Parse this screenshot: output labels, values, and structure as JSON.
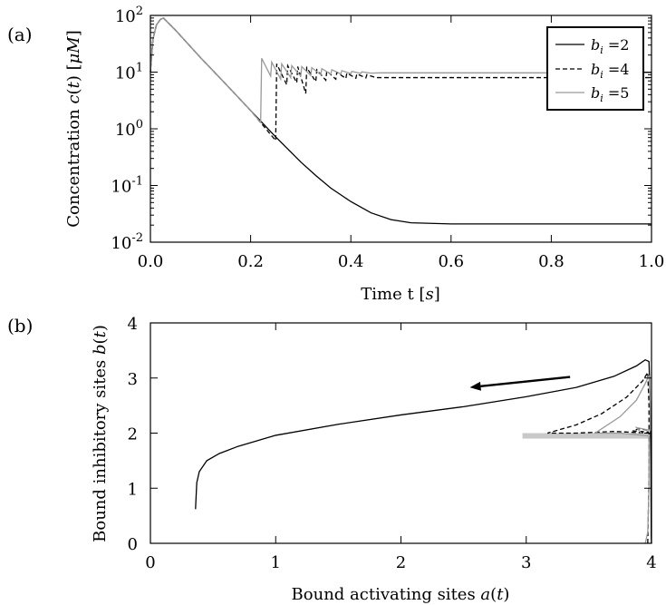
{
  "panel_labels": [
    "(a)",
    "(b)"
  ],
  "chart_data": [
    {
      "type": "line",
      "panel": "(a)",
      "xlabel": "Time t [s]",
      "ylabel": "Concentration c(t) [μM]",
      "xlim": [
        0.0,
        1.0
      ],
      "ylim": [
        0.01,
        100
      ],
      "yscale": "log",
      "xticks": [
        0.0,
        0.2,
        0.4,
        0.6,
        0.8,
        1.0
      ],
      "xtick_labels": [
        "0.0",
        "0.2",
        "0.4",
        "0.6",
        "0.8",
        "1.0"
      ],
      "yticks": [
        0.01,
        0.1,
        1,
        10,
        100
      ],
      "ytick_labels": [
        {
          "base": "10",
          "exp": "-2"
        },
        {
          "base": "10",
          "exp": "-1"
        },
        {
          "base": "10",
          "exp": "0"
        },
        {
          "base": "10",
          "exp": "1"
        },
        {
          "base": "10",
          "exp": "2"
        }
      ],
      "legend_position": "top-right",
      "series": [
        {
          "name": "b_i = 2",
          "style": "solid",
          "color": "#000000",
          "points": [
            [
              0.0,
              10
            ],
            [
              0.005,
              38
            ],
            [
              0.012,
              68
            ],
            [
              0.02,
              85
            ],
            [
              0.026,
              90
            ],
            [
              0.05,
              55
            ],
            [
              0.1,
              18
            ],
            [
              0.15,
              6.2
            ],
            [
              0.2,
              2.1
            ],
            [
              0.25,
              0.72
            ],
            [
              0.3,
              0.26
            ],
            [
              0.33,
              0.15
            ],
            [
              0.36,
              0.09
            ],
            [
              0.4,
              0.052
            ],
            [
              0.44,
              0.033
            ],
            [
              0.48,
              0.025
            ],
            [
              0.52,
              0.022
            ],
            [
              0.6,
              0.021
            ],
            [
              0.8,
              0.021
            ],
            [
              1.0,
              0.021
            ]
          ]
        },
        {
          "name": "b_i = 4",
          "style": "dashed",
          "color": "#000000",
          "points": [
            [
              0.0,
              10
            ],
            [
              0.005,
              38
            ],
            [
              0.012,
              68
            ],
            [
              0.02,
              85
            ],
            [
              0.026,
              90
            ],
            [
              0.05,
              55
            ],
            [
              0.1,
              18
            ],
            [
              0.15,
              6.2
            ],
            [
              0.2,
              2.1
            ],
            [
              0.25,
              0.62
            ],
            [
              0.252,
              14
            ],
            [
              0.272,
              6.0
            ],
            [
              0.274,
              13
            ],
            [
              0.292,
              6.5
            ],
            [
              0.294,
              12.5
            ],
            [
              0.31,
              4.2
            ],
            [
              0.312,
              12
            ],
            [
              0.33,
              6.8
            ],
            [
              0.332,
              11
            ],
            [
              0.35,
              7.2
            ],
            [
              0.352,
              10.5
            ],
            [
              0.37,
              7.5
            ],
            [
              0.372,
              10
            ],
            [
              0.39,
              7.7
            ],
            [
              0.392,
              9.6
            ],
            [
              0.41,
              7.8
            ],
            [
              0.412,
              9.3
            ],
            [
              0.43,
              7.9
            ],
            [
              0.432,
              9.0
            ],
            [
              0.45,
              8.0
            ],
            [
              0.47,
              8.0
            ],
            [
              1.0,
              8.0
            ]
          ]
        },
        {
          "name": "b_i = 5",
          "style": "solid",
          "color": "#999999",
          "points": [
            [
              0.0,
              10
            ],
            [
              0.005,
              38
            ],
            [
              0.012,
              68
            ],
            [
              0.02,
              85
            ],
            [
              0.026,
              90
            ],
            [
              0.05,
              55
            ],
            [
              0.1,
              18
            ],
            [
              0.15,
              6.2
            ],
            [
              0.2,
              2.1
            ],
            [
              0.22,
              1.3
            ],
            [
              0.222,
              17.5
            ],
            [
              0.24,
              8.5
            ],
            [
              0.242,
              15
            ],
            [
              0.26,
              7.5
            ],
            [
              0.262,
              14
            ],
            [
              0.28,
              8.0
            ],
            [
              0.282,
              13
            ],
            [
              0.3,
              8.5
            ],
            [
              0.302,
              12.5
            ],
            [
              0.32,
              8.7
            ],
            [
              0.322,
              12
            ],
            [
              0.34,
              9.0
            ],
            [
              0.342,
              11.5
            ],
            [
              0.36,
              9.2
            ],
            [
              0.362,
              11
            ],
            [
              0.38,
              9.3
            ],
            [
              0.382,
              10.6
            ],
            [
              0.4,
              9.4
            ],
            [
              0.402,
              10.3
            ],
            [
              0.42,
              9.5
            ],
            [
              0.422,
              10.1
            ],
            [
              0.44,
              9.6
            ],
            [
              0.46,
              9.7
            ],
            [
              1.0,
              9.7
            ]
          ]
        }
      ]
    },
    {
      "type": "line",
      "panel": "(b)",
      "xlabel": "Bound activating sites a(t)",
      "ylabel": "Bound inhibitory sites b(t)",
      "xlim": [
        0,
        4
      ],
      "ylim": [
        0,
        4
      ],
      "xticks": [
        0,
        1,
        2,
        3,
        4
      ],
      "xtick_labels": [
        "0",
        "1",
        "2",
        "3",
        "4"
      ],
      "yticks": [
        0,
        1,
        2,
        3,
        4
      ],
      "ytick_labels": [
        "0",
        "1",
        "2",
        "3",
        "4"
      ],
      "arrow": {
        "from": [
          3.35,
          3.02
        ],
        "to": [
          2.55,
          2.83
        ],
        "color": "#000000"
      },
      "band": {
        "x": [
          2.97,
          4.0
        ],
        "y": [
          1.9,
          2.0
        ],
        "color": "#c8c8c8"
      },
      "series": [
        {
          "name": "b_i = 2",
          "style": "solid",
          "color": "#000000",
          "points": [
            [
              0.36,
              0.62
            ],
            [
              0.37,
              1.1
            ],
            [
              0.39,
              1.3
            ],
            [
              0.45,
              1.5
            ],
            [
              0.55,
              1.63
            ],
            [
              0.7,
              1.76
            ],
            [
              1.0,
              1.96
            ],
            [
              1.5,
              2.16
            ],
            [
              2.0,
              2.33
            ],
            [
              2.5,
              2.48
            ],
            [
              3.0,
              2.66
            ],
            [
              3.4,
              2.83
            ],
            [
              3.7,
              3.03
            ],
            [
              3.88,
              3.22
            ],
            [
              3.95,
              3.33
            ],
            [
              3.98,
              3.3
            ],
            [
              3.99,
              2.5
            ],
            [
              3.995,
              1.5
            ],
            [
              3.997,
              0.6
            ],
            [
              3.998,
              0.1
            ],
            [
              4.0,
              0.0
            ]
          ]
        },
        {
          "name": "b_i = 4",
          "style": "dashed",
          "color": "#000000",
          "points": [
            [
              3.97,
              0.0
            ],
            [
              3.98,
              1.2
            ],
            [
              3.98,
              2.0
            ],
            [
              3.7,
              2.03
            ],
            [
              3.4,
              2.0
            ],
            [
              3.17,
              2.0
            ],
            [
              3.4,
              2.15
            ],
            [
              3.6,
              2.35
            ],
            [
              3.8,
              2.65
            ],
            [
              3.93,
              2.95
            ],
            [
              3.97,
              3.1
            ],
            [
              3.98,
              2.5
            ],
            [
              3.98,
              2.05
            ],
            [
              3.9,
              2.08
            ],
            [
              3.85,
              2.04
            ],
            [
              3.98,
              2.02
            ]
          ]
        },
        {
          "name": "b_i = 5",
          "style": "solid",
          "color": "#999999",
          "points": [
            [
              3.95,
              0.0
            ],
            [
              3.97,
              0.2
            ],
            [
              3.98,
              1.0
            ],
            [
              3.98,
              1.95
            ],
            [
              3.75,
              2.0
            ],
            [
              3.55,
              2.0
            ],
            [
              3.75,
              2.3
            ],
            [
              3.88,
              2.6
            ],
            [
              3.95,
              2.9
            ],
            [
              3.98,
              3.05
            ],
            [
              3.99,
              2.5
            ],
            [
              3.99,
              2.05
            ],
            [
              3.88,
              2.1
            ],
            [
              3.92,
              2.0
            ]
          ]
        }
      ]
    }
  ]
}
